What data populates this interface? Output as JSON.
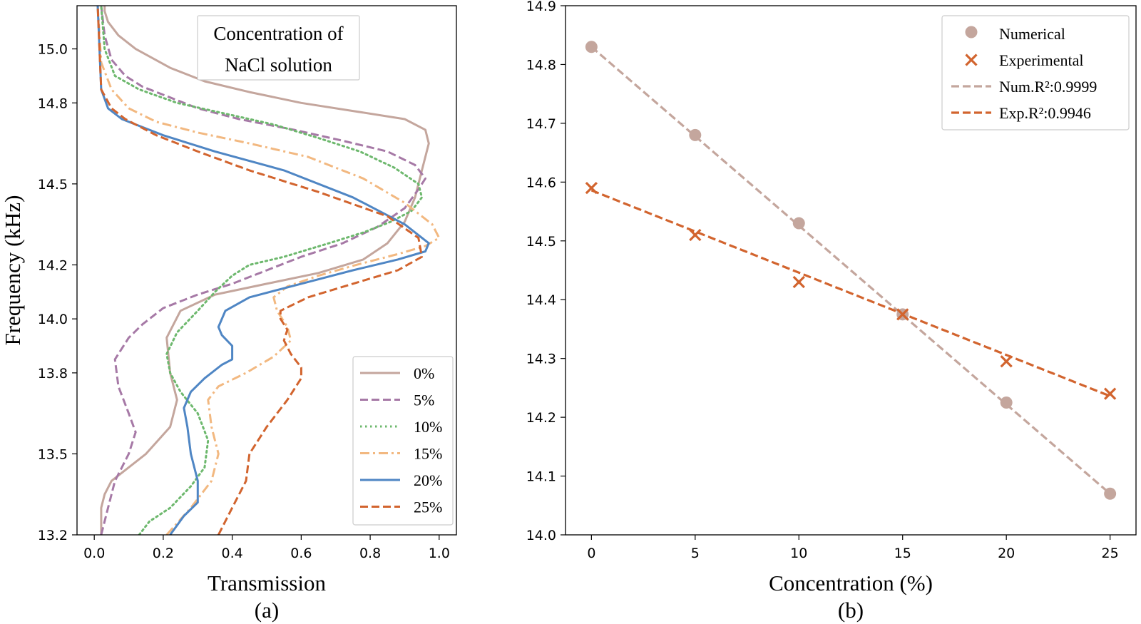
{
  "chart_data": [
    {
      "type": "line",
      "panel_label": "(a)",
      "xlabel": "Transmission",
      "ylabel": "Frequency (kHz)",
      "xlim": [
        -0.05,
        1.05
      ],
      "ylim": [
        13.2,
        15.16
      ],
      "xticks": [
        "0.0",
        "0.2",
        "0.4",
        "0.6",
        "0.8",
        "1.0"
      ],
      "yticks": [
        "13.2",
        "13.5",
        "13.8",
        "14.0",
        "14.2",
        "14.5",
        "14.8",
        "15.0"
      ],
      "annotation": [
        "Concentration of",
        "NaCl solution"
      ],
      "legend_position": "lower-right",
      "series": [
        {
          "name": "0%",
          "color": "#C4A69D",
          "dash": "solid",
          "x": [
            0.02,
            0.02,
            0.03,
            0.05,
            0.1,
            0.15,
            0.22,
            0.24,
            0.22,
            0.21,
            0.25,
            0.35,
            0.5,
            0.65,
            0.78,
            0.85,
            0.9,
            0.93,
            0.95,
            0.97,
            0.96,
            0.9,
            0.75,
            0.6,
            0.45,
            0.32,
            0.22,
            0.12,
            0.07,
            0.04,
            0.03,
            0.03
          ],
          "y": [
            13.2,
            13.3,
            13.35,
            13.4,
            13.45,
            13.5,
            13.6,
            13.7,
            13.8,
            13.93,
            14.03,
            14.09,
            14.13,
            14.17,
            14.22,
            14.28,
            14.36,
            14.45,
            14.55,
            14.65,
            14.7,
            14.74,
            14.77,
            14.8,
            14.84,
            14.88,
            14.93,
            15.0,
            15.05,
            15.1,
            15.14,
            15.16
          ]
        },
        {
          "name": "5%",
          "color": "#A679A6",
          "dash": "dashed",
          "x": [
            0.02,
            0.04,
            0.06,
            0.08,
            0.1,
            0.12,
            0.1,
            0.07,
            0.06,
            0.1,
            0.14,
            0.2,
            0.3,
            0.4,
            0.5,
            0.6,
            0.72,
            0.82,
            0.9,
            0.94,
            0.96,
            0.93,
            0.85,
            0.72,
            0.58,
            0.42,
            0.3,
            0.22,
            0.14,
            0.09,
            0.05,
            0.03,
            0.02
          ],
          "y": [
            13.2,
            13.3,
            13.4,
            13.45,
            13.5,
            13.58,
            13.65,
            13.75,
            13.85,
            13.93,
            13.98,
            14.04,
            14.09,
            14.13,
            14.18,
            14.23,
            14.28,
            14.34,
            14.41,
            14.48,
            14.52,
            14.57,
            14.62,
            14.66,
            14.7,
            14.74,
            14.78,
            14.82,
            14.86,
            14.9,
            14.96,
            15.05,
            15.16
          ]
        },
        {
          "name": "10%",
          "color": "#6DB86D",
          "dash": "dotted",
          "x": [
            0.13,
            0.16,
            0.22,
            0.28,
            0.32,
            0.33,
            0.3,
            0.25,
            0.22,
            0.21,
            0.24,
            0.3,
            0.35,
            0.4,
            0.45,
            0.55,
            0.68,
            0.78,
            0.86,
            0.92,
            0.95,
            0.94,
            0.87,
            0.77,
            0.65,
            0.52,
            0.38,
            0.24,
            0.13,
            0.06,
            0.03,
            0.02
          ],
          "y": [
            13.2,
            13.25,
            13.3,
            13.38,
            13.45,
            13.55,
            13.65,
            13.73,
            13.8,
            13.87,
            13.95,
            14.03,
            14.1,
            14.16,
            14.2,
            14.23,
            14.28,
            14.32,
            14.36,
            14.4,
            14.45,
            14.5,
            14.56,
            14.62,
            14.67,
            14.72,
            14.76,
            14.8,
            14.85,
            14.9,
            15.0,
            15.16
          ]
        },
        {
          "name": "15%",
          "color": "#F2B880",
          "dash": "dashdot",
          "x": [
            0.21,
            0.28,
            0.34,
            0.36,
            0.34,
            0.33,
            0.36,
            0.44,
            0.52,
            0.57,
            0.56,
            0.53,
            0.52,
            0.56,
            0.65,
            0.76,
            0.88,
            0.96,
            1.0,
            0.98,
            0.9,
            0.78,
            0.62,
            0.45,
            0.3,
            0.18,
            0.1,
            0.05,
            0.02,
            0.01
          ],
          "y": [
            13.2,
            13.3,
            13.4,
            13.5,
            13.6,
            13.7,
            13.75,
            13.8,
            13.86,
            13.92,
            13.97,
            14.03,
            14.08,
            14.12,
            14.16,
            14.2,
            14.24,
            14.27,
            14.3,
            14.35,
            14.43,
            14.52,
            14.6,
            14.65,
            14.69,
            14.73,
            14.78,
            14.85,
            14.95,
            15.16
          ]
        },
        {
          "name": "20%",
          "color": "#4F86C4",
          "dash": "solid",
          "x": [
            0.22,
            0.26,
            0.3,
            0.3,
            0.28,
            0.27,
            0.26,
            0.28,
            0.32,
            0.37,
            0.4,
            0.4,
            0.37,
            0.36,
            0.38,
            0.45,
            0.6,
            0.75,
            0.88,
            0.96,
            0.97,
            0.9,
            0.75,
            0.55,
            0.35,
            0.2,
            0.08,
            0.04,
            0.02,
            0.01
          ],
          "y": [
            13.2,
            13.27,
            13.32,
            13.4,
            13.5,
            13.6,
            13.67,
            13.73,
            13.78,
            13.83,
            13.85,
            13.9,
            13.94,
            13.97,
            14.03,
            14.08,
            14.13,
            14.18,
            14.22,
            14.25,
            14.28,
            14.35,
            14.45,
            14.55,
            14.62,
            14.68,
            14.74,
            14.78,
            14.85,
            15.16
          ]
        },
        {
          "name": "25%",
          "color": "#D2642E",
          "dash": "dashed",
          "x": [
            0.36,
            0.4,
            0.44,
            0.45,
            0.5,
            0.56,
            0.6,
            0.6,
            0.57,
            0.55,
            0.56,
            0.54,
            0.54,
            0.62,
            0.75,
            0.88,
            0.95,
            0.94,
            0.85,
            0.65,
            0.45,
            0.3,
            0.18,
            0.09,
            0.05,
            0.02,
            0.01
          ],
          "y": [
            13.2,
            13.3,
            13.4,
            13.5,
            13.6,
            13.7,
            13.78,
            13.82,
            13.87,
            13.92,
            13.96,
            14.0,
            14.03,
            14.08,
            14.13,
            14.18,
            14.23,
            14.3,
            14.38,
            14.47,
            14.55,
            14.62,
            14.68,
            14.74,
            14.78,
            14.85,
            15.16
          ]
        }
      ]
    },
    {
      "type": "scatter",
      "panel_label": "(b)",
      "xlabel": "Concentration (%)",
      "ylabel": "",
      "xlim": [
        -1.25,
        26.25
      ],
      "ylim": [
        14.0,
        14.9
      ],
      "xticks": [
        "0",
        "5",
        "10",
        "15",
        "20",
        "25"
      ],
      "yticks": [
        "14.0",
        "14.1",
        "14.2",
        "14.3",
        "14.4",
        "14.5",
        "14.6",
        "14.7",
        "14.8",
        "14.9"
      ],
      "legend_position": "upper-right",
      "series": [
        {
          "name": "Numerical",
          "color": "#C4A69D",
          "marker": "circle",
          "x": [
            0,
            5,
            10,
            15,
            20,
            25
          ],
          "y": [
            14.83,
            14.68,
            14.53,
            14.375,
            14.225,
            14.07
          ]
        },
        {
          "name": "Experimental",
          "color": "#D2642E",
          "marker": "x",
          "x": [
            0,
            5,
            10,
            15,
            20,
            25
          ],
          "y": [
            14.59,
            14.51,
            14.43,
            14.375,
            14.295,
            14.24
          ]
        },
        {
          "name": "Num.R²:0.9999",
          "color": "#C4A69D",
          "marker": "none",
          "dash": "dashed",
          "x": [
            0,
            25
          ],
          "y": [
            14.83,
            14.07
          ]
        },
        {
          "name": "Exp.R²:0.9946",
          "color": "#D2642E",
          "marker": "none",
          "dash": "dashed",
          "x": [
            0,
            25
          ],
          "y": [
            14.586,
            14.236
          ]
        }
      ]
    }
  ]
}
